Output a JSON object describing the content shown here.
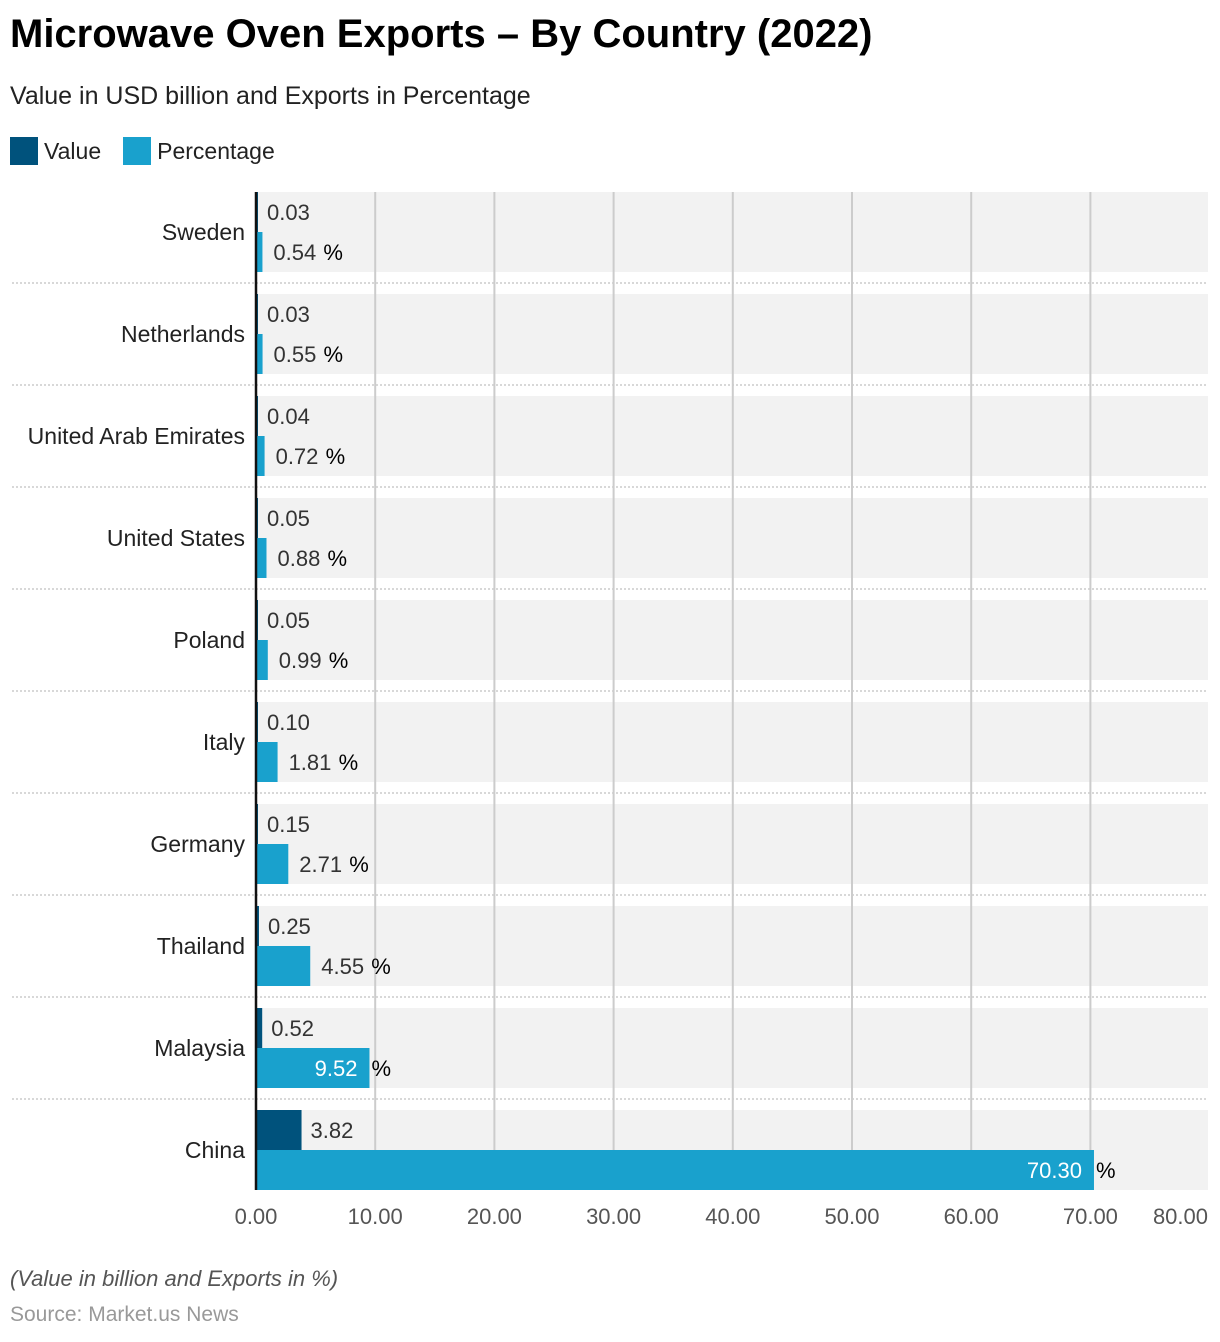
{
  "chart_data": {
    "type": "bar",
    "orientation": "horizontal",
    "title": "Microwave Oven Exports – By Country (2022)",
    "subtitle": "Value in USD billion and Exports in Percentage",
    "categories": [
      "Sweden",
      "Netherlands",
      "United Arab Emirates",
      "United States",
      "Poland",
      "Italy",
      "Germany",
      "Thailand",
      "Malaysia",
      "China"
    ],
    "series": [
      {
        "name": "Value",
        "color": "#00527c",
        "values": [
          0.03,
          0.03,
          0.04,
          0.05,
          0.05,
          0.1,
          0.15,
          0.25,
          0.52,
          3.82
        ],
        "labels": [
          "0.03",
          "0.03",
          "0.04",
          "0.05",
          "0.05",
          "0.10",
          "0.15",
          "0.25",
          "0.52",
          "3.82"
        ]
      },
      {
        "name": "Percentage",
        "color": "#19a1cd",
        "values": [
          0.54,
          0.55,
          0.72,
          0.88,
          0.99,
          1.81,
          2.71,
          4.55,
          9.52,
          70.3
        ],
        "labels": [
          "0.54",
          "0.55",
          "0.72",
          "0.88",
          "0.99",
          "1.81",
          "2.71",
          "4.55",
          "9.52",
          "70.30"
        ],
        "suffix": "%"
      }
    ],
    "xlim": [
      0,
      80
    ],
    "xticks": [
      "0.00",
      "10.00",
      "20.00",
      "30.00",
      "40.00",
      "50.00",
      "60.00",
      "70.00",
      "80.00"
    ],
    "xtick_values": [
      0,
      10,
      20,
      30,
      40,
      50,
      60,
      70,
      80
    ],
    "grid": true,
    "legend_position": "top-left",
    "note": "(Value in billion and Exports in %)",
    "source": "Source: Market.us News"
  }
}
